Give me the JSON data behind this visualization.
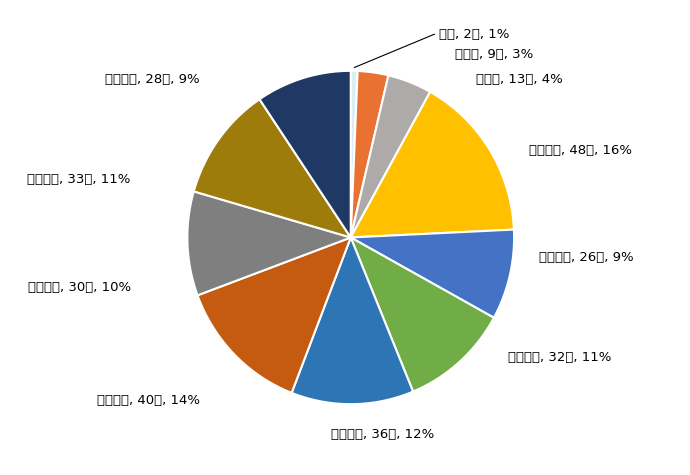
{
  "labels": [
    "０歳, 2人, 1%",
    "１歳～, 9人, 3%",
    "５歳～, 13人, 4%",
    "１０歳～, 48人, 16%",
    "２０歳～, 26人, 9%",
    "３０歳～, 32人, 11%",
    "４０歳～, 36人, 12%",
    "５０歳～, 40人, 14%",
    "６０歳～, 30人, 10%",
    "７０歳～, 33人, 11%",
    "８０歳～, 28人, 9%"
  ],
  "values": [
    2,
    9,
    13,
    48,
    26,
    32,
    36,
    40,
    30,
    33,
    28
  ],
  "colors": [
    "#DAEEF3",
    "#E97132",
    "#AEAAAA",
    "#FFC000",
    "#4472C4",
    "#70AD47",
    "#2E75B6",
    "#C55A11",
    "#7F7F7F",
    "#9E7C0C",
    "#203864"
  ],
  "background_color": "#FFFFFF",
  "figsize": [
    6.9,
    4.75
  ],
  "label_texts": [
    "０歳, 2人, 1%",
    "１歳～, 9人, 3%",
    "５歳～, 13人, 4%",
    "１０歳～, 48人, 16%",
    "２０歳～, 26人, 9%",
    "３０歳～, 32人, 11%",
    "４０歳～, 36人, 12%",
    "５０歳～, 40人, 14%",
    "６０歳～, 30人, 10%",
    "７０歳～, 33人, 11%",
    "８０歳～, 28人, 9%"
  ]
}
